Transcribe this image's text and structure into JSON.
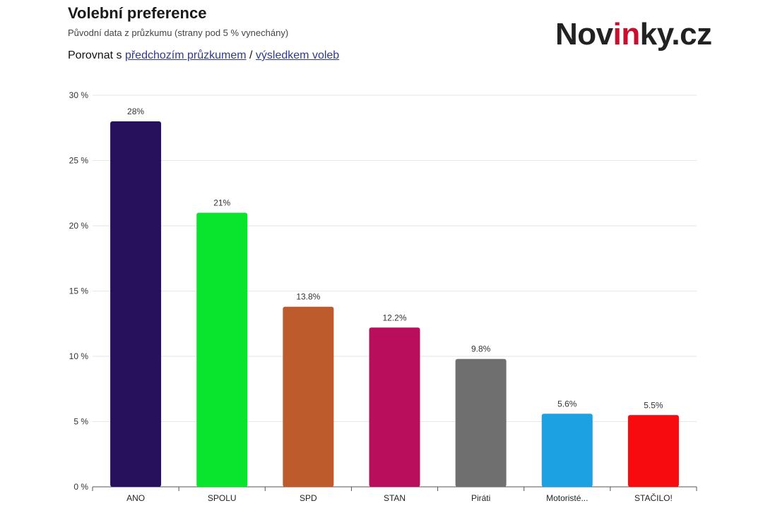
{
  "header": {
    "title": "Volební preference",
    "subtitle": "Původní data z průzkumu (strany pod 5 % vynechány)",
    "compare_prefix": "Porovnat s",
    "compare_link_previous": "předchozím průzkumem",
    "compare_separator": "/",
    "compare_link_election": "výsledkem voleb"
  },
  "logo": {
    "part1": "Nov",
    "part2": "in",
    "part3": "ky.cz",
    "accent_color": "#c8102e"
  },
  "chart_data": {
    "type": "bar",
    "categories": [
      "ANO",
      "SPOLU",
      "SPD",
      "STAN",
      "Piráti",
      "Motoristé...",
      "STAČILO!"
    ],
    "values": [
      28,
      21,
      13.8,
      12.2,
      9.8,
      5.6,
      5.5
    ],
    "value_labels": [
      "28%",
      "21%",
      "13.8%",
      "12.2%",
      "9.8%",
      "5.6%",
      "5.5%"
    ],
    "colors": [
      "#27105c",
      "#08e52c",
      "#bd5b2c",
      "#b80e5c",
      "#6f6f6f",
      "#1ca1e3",
      "#f70b0e"
    ],
    "ylim": [
      0,
      30
    ],
    "yticks": [
      0,
      5,
      10,
      15,
      20,
      25,
      30
    ],
    "ytick_labels": [
      "0 %",
      "5 %",
      "10 %",
      "15 %",
      "20 %",
      "25 %",
      "30 %"
    ],
    "grid": true
  }
}
